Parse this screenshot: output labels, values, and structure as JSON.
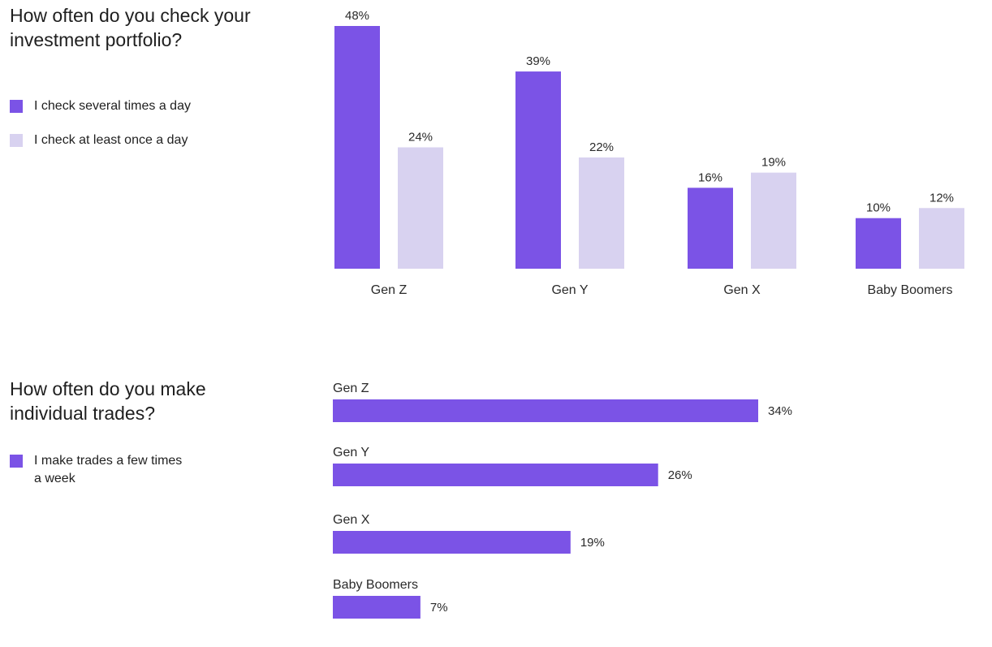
{
  "colors": {
    "primary": "#7b53e6",
    "secondary": "#d8d2f0"
  },
  "chart_data": [
    {
      "type": "bar",
      "title": "How often do you check your investment portfolio?",
      "categories": [
        "Gen Z",
        "Gen Y",
        "Gen X",
        "Baby Boomers"
      ],
      "series": [
        {
          "name": "I check several times a day",
          "values": [
            48,
            39,
            16,
            10
          ],
          "labels": [
            "48%",
            "39%",
            "16%",
            "10%"
          ]
        },
        {
          "name": "I check at least once a day",
          "values": [
            24,
            22,
            19,
            12
          ],
          "labels": [
            "24%",
            "22%",
            "19%",
            "12%"
          ]
        }
      ],
      "ylim": [
        0,
        50
      ],
      "grid": false,
      "legend": "left"
    },
    {
      "type": "bar",
      "orientation": "horizontal",
      "title": "How often do you make individual trades?",
      "categories": [
        "Gen Z",
        "Gen Y",
        "Gen X",
        "Baby Boomers"
      ],
      "series": [
        {
          "name": "I make trades a few times a week",
          "values": [
            34,
            26,
            19,
            7
          ],
          "labels": [
            "34%",
            "26%",
            "19%",
            "7%"
          ]
        }
      ],
      "xlim": [
        0,
        80
      ],
      "grid": false,
      "legend": "left"
    }
  ]
}
